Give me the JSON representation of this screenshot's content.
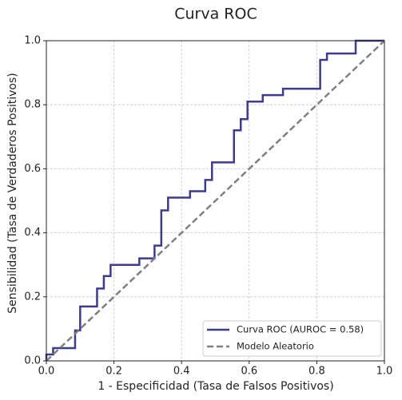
{
  "chart_data": {
    "type": "line",
    "title": "Curva ROC",
    "x_label": "1 - Especificidad (Tasa de Falsos Positivos)",
    "y_label": "Sensibilidad (Tasa de Verdaderos Positivos)",
    "xlim": [
      0,
      1
    ],
    "ylim": [
      0,
      1
    ],
    "xticks": [
      {
        "value": 0,
        "label": "0.0"
      },
      0.2,
      0.4,
      0.6,
      0.8,
      {
        "value": 1,
        "label": "1.0"
      }
    ],
    "yticks": [
      {
        "value": 0,
        "label": "0.0"
      },
      0.2,
      0.4,
      0.6,
      0.8,
      {
        "value": 1,
        "label": "1.0"
      }
    ],
    "grid": true,
    "legend": "lower right",
    "series": [
      {
        "name": "Curva ROC (AUROC = 0.58)",
        "color": "#3c3c8c",
        "linestyle": "solid",
        "x": [
          0,
          0,
          0.02,
          0.02,
          0.085,
          0.085,
          0.1,
          0.1,
          0.15,
          0.15,
          0.17,
          0.17,
          0.19,
          0.19,
          0.275,
          0.275,
          0.32,
          0.32,
          0.34,
          0.34,
          0.36,
          0.36,
          0.425,
          0.425,
          0.47,
          0.47,
          0.49,
          0.49,
          0.555,
          0.555,
          0.575,
          0.575,
          0.595,
          0.595,
          0.64,
          0.64,
          0.7,
          0.7,
          0.81,
          0.81,
          0.83,
          0.83,
          0.915,
          0.915,
          1
        ],
        "values": [
          0,
          0.02,
          0.02,
          0.04,
          0.04,
          0.095,
          0.095,
          0.17,
          0.17,
          0.226,
          0.226,
          0.265,
          0.265,
          0.3,
          0.3,
          0.32,
          0.32,
          0.36,
          0.36,
          0.47,
          0.47,
          0.51,
          0.51,
          0.53,
          0.53,
          0.565,
          0.565,
          0.62,
          0.62,
          0.72,
          0.72,
          0.755,
          0.755,
          0.81,
          0.81,
          0.83,
          0.83,
          0.85,
          0.85,
          0.94,
          0.94,
          0.96,
          0.96,
          1,
          1
        ]
      },
      {
        "name": "Modelo Aleatorio",
        "color": "#808080",
        "linestyle": "dashed",
        "x": [
          0,
          1
        ],
        "values": [
          0,
          1
        ]
      }
    ]
  }
}
